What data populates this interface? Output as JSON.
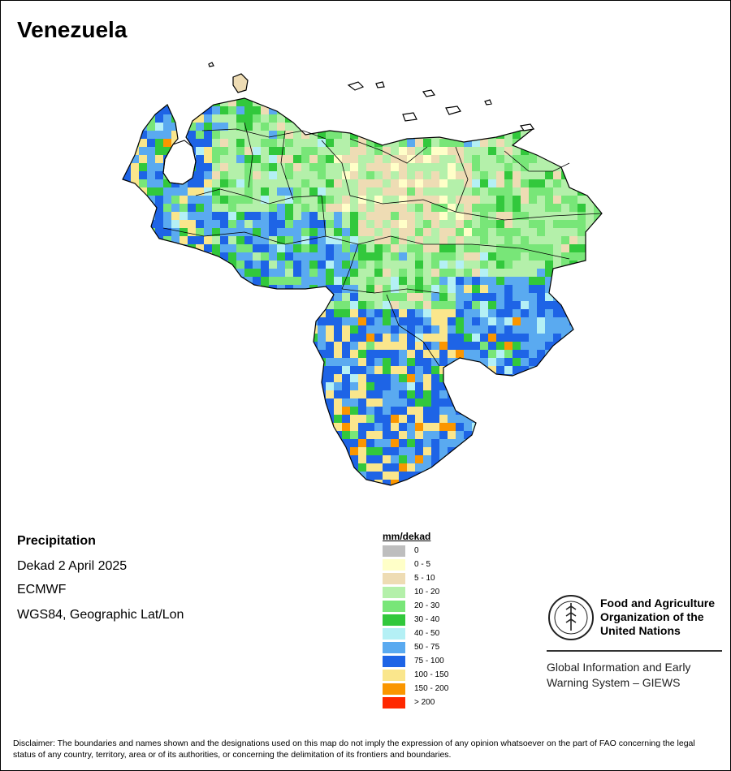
{
  "map": {
    "title": "Venezuela",
    "variable": "Precipitation",
    "period": "Dekad 2 April 2025",
    "source": "ECMWF",
    "projection": "WGS84, Geographic Lat/Lon"
  },
  "legend": {
    "title": "mm/dekad",
    "classes": [
      {
        "label": "0",
        "color": "#bebebe"
      },
      {
        "label": "0 - 5",
        "color": "#ffffc8"
      },
      {
        "label": "5 - 10",
        "color": "#eedcb4"
      },
      {
        "label": "10 - 20",
        "color": "#b4f0aa"
      },
      {
        "label": "20 - 30",
        "color": "#78e678"
      },
      {
        "label": "30 - 40",
        "color": "#32c83c"
      },
      {
        "label": "40 - 50",
        "color": "#b4f0f5"
      },
      {
        "label": "50 - 75",
        "color": "#5aaaf0"
      },
      {
        "label": "75 - 100",
        "color": "#1e64e6"
      },
      {
        "label": "100 - 150",
        "color": "#fae68c"
      },
      {
        "label": "150 - 200",
        "color": "#fa9600"
      },
      {
        "label": "> 200",
        "color": "#ff2800"
      }
    ]
  },
  "logo": {
    "org_name": "Food and Agriculture Organization of the United Nations",
    "emblem_letters": "FAO",
    "emblem_motto": "FIAT PANIS",
    "system_name": "Global Information and Early Warning System – GIEWS"
  },
  "disclaimer": "Disclaimer: The boundaries and names shown and the designations used on this map do not imply the expression of any opinion whatsoever on the part of FAO concerning the legal status of any country, territory, area or of its authorities, or concerning the delimitation of its frontiers and boundaries."
}
